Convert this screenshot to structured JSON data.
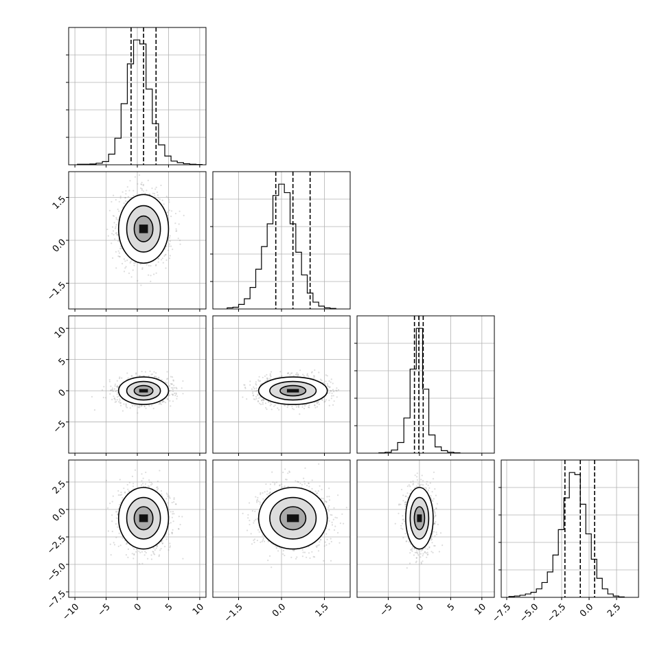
{
  "chart_data": {
    "type": "corner",
    "grid": true,
    "variables": [
      {
        "mean": 1.0,
        "sd": 2.0,
        "range": [
          -11,
          11
        ],
        "ticks": [
          -10,
          -5,
          0,
          5,
          10
        ],
        "tick_labels": [
          "−10",
          "−5",
          "0",
          "5",
          "10"
        ],
        "quantiles": [
          -1.0,
          1.0,
          3.0
        ],
        "histogram": {
          "bin_start": -9.6,
          "bin_width": 1.0,
          "counts": [
            2,
            2,
            3,
            6,
            12,
            40,
            100,
            230,
            380,
            470,
            455,
            285,
            155,
            75,
            33,
            14,
            8,
            4,
            2,
            1
          ]
        }
      },
      {
        "mean": 0.4,
        "sd": 0.6,
        "range": [
          -2.4,
          2.4
        ],
        "ticks": [
          -1.5,
          0.0,
          1.5
        ],
        "tick_labels": [
          "−1.5",
          "0.0",
          "1.5"
        ],
        "quantiles": [
          -0.2,
          0.4,
          1.0
        ],
        "histogram": {
          "bin_start": -1.9,
          "bin_width": 0.2,
          "counts": [
            2,
            3,
            8,
            18,
            38,
            70,
            110,
            150,
            200,
            220,
            205,
            150,
            100,
            60,
            28,
            12,
            5,
            2,
            1
          ]
        }
      },
      {
        "mean": 0.0,
        "sd": 1.1,
        "range": [
          -10,
          12
        ],
        "ticks": [
          -5,
          0,
          5,
          10
        ],
        "tick_labels": [
          "−5",
          "0",
          "5",
          "10"
        ],
        "quantiles": [
          -0.8,
          -0.1,
          0.6
        ],
        "histogram": {
          "bin_start": -6.5,
          "bin_width": 1.0,
          "counts": [
            3,
            8,
            25,
            85,
            280,
            670,
            995,
            510,
            145,
            50,
            20,
            8,
            3
          ]
        }
      },
      {
        "mean": -0.8,
        "sd": 1.4,
        "range": [
          -8,
          4.5
        ],
        "ticks": [
          -7.5,
          -5.0,
          -2.5,
          0.0,
          2.5
        ],
        "tick_labels": [
          "−7.5",
          "−5.0",
          "−2.5",
          "0.0",
          "2.5"
        ],
        "quantiles": [
          -2.2,
          -0.8,
          0.5
        ],
        "histogram": {
          "bin_start": -7.3,
          "bin_width": 0.5,
          "counts": [
            2,
            3,
            5,
            8,
            12,
            20,
            35,
            60,
            100,
            160,
            235,
            295,
            290,
            220,
            150,
            90,
            45,
            20,
            8,
            3,
            1
          ]
        }
      }
    ]
  }
}
